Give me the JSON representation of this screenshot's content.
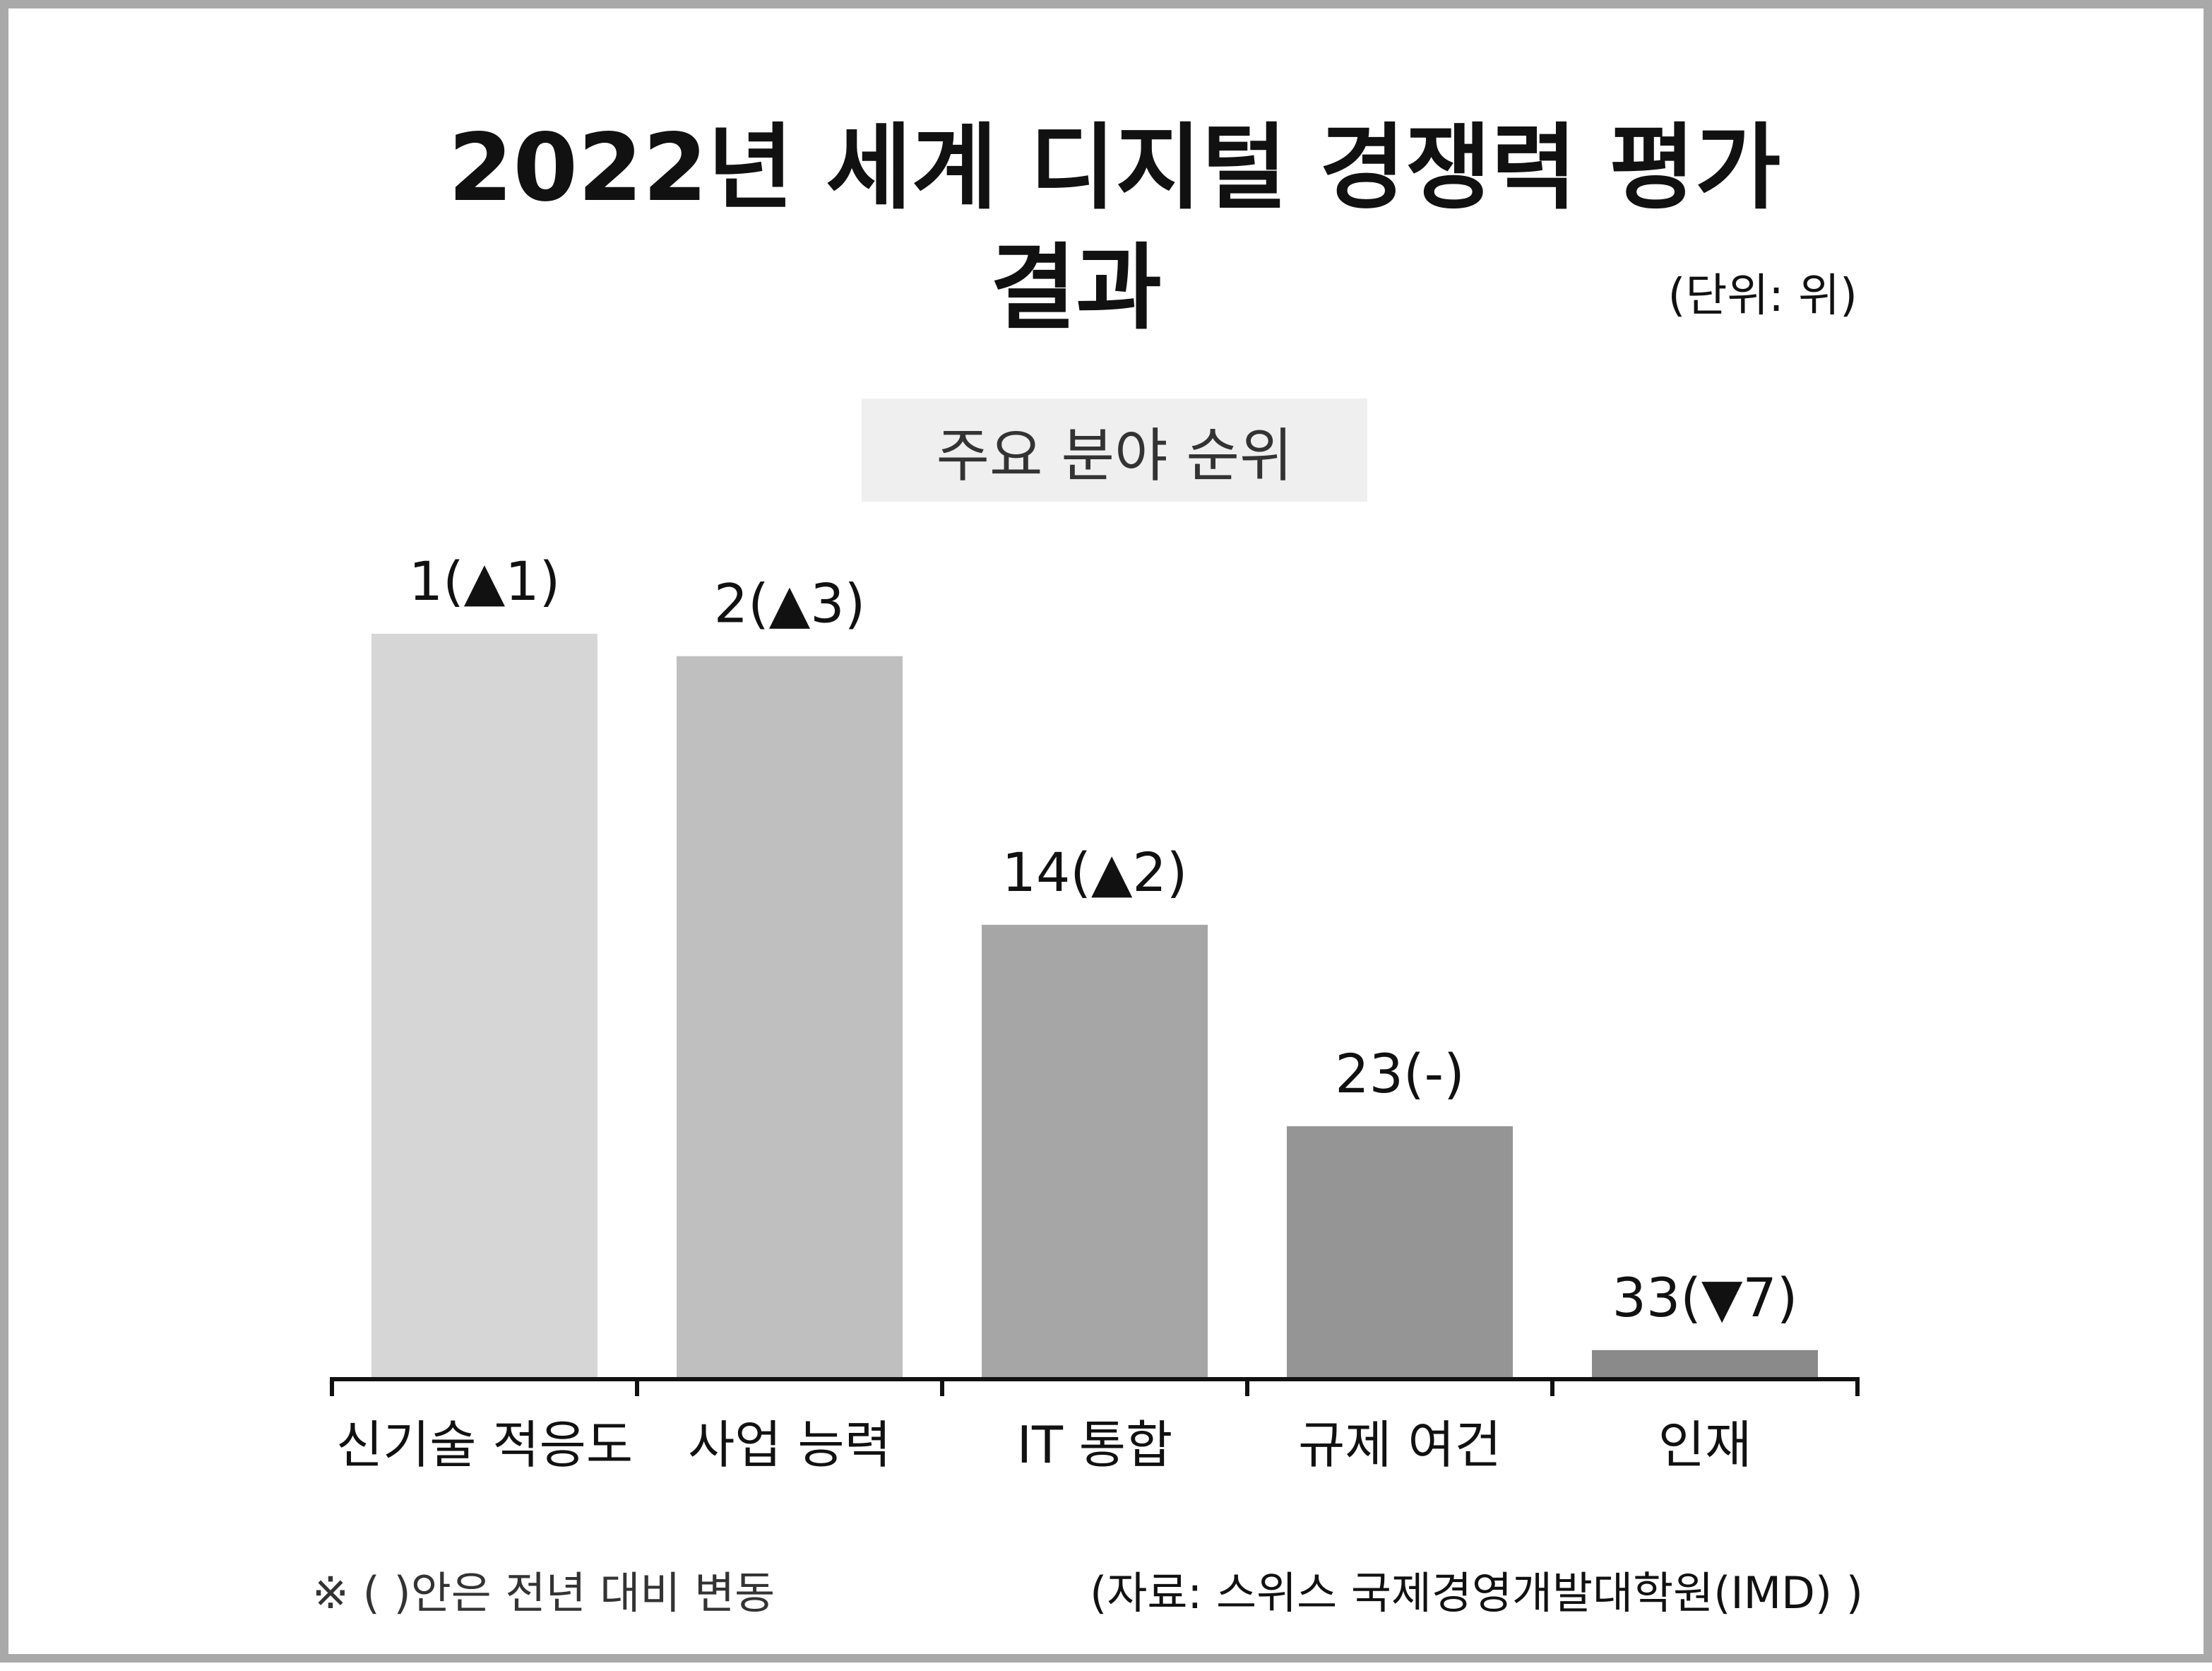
{
  "chart_data": {
    "type": "bar",
    "title_line_1": "2022년 세계 디지털 경쟁력 평가",
    "title_line_2": "결과",
    "unit": "(단위: 위)",
    "subtitle": "주요 분야 순위",
    "categories": [
      "신기술 적응도",
      "사업 능력",
      "IT 통합",
      "규제 여건",
      "인재"
    ],
    "values": [
      1,
      2,
      14,
      23,
      33
    ],
    "value_labels": [
      "1(▲1)",
      "2(▲3)",
      "14(▲2)",
      "23(-)",
      "33(▼7)"
    ],
    "changes": [
      "▲1",
      "▲3",
      "▲2",
      "-",
      "▼7"
    ],
    "bar_colors": [
      "#d6d6d6",
      "#bfbfbf",
      "#a6a6a6",
      "#959595",
      "#8a8a8a"
    ],
    "note": "※ ( )안은 전년 대비 변동",
    "source": "(자료: 스위스 국제경영개발대학원(IMD) )"
  }
}
